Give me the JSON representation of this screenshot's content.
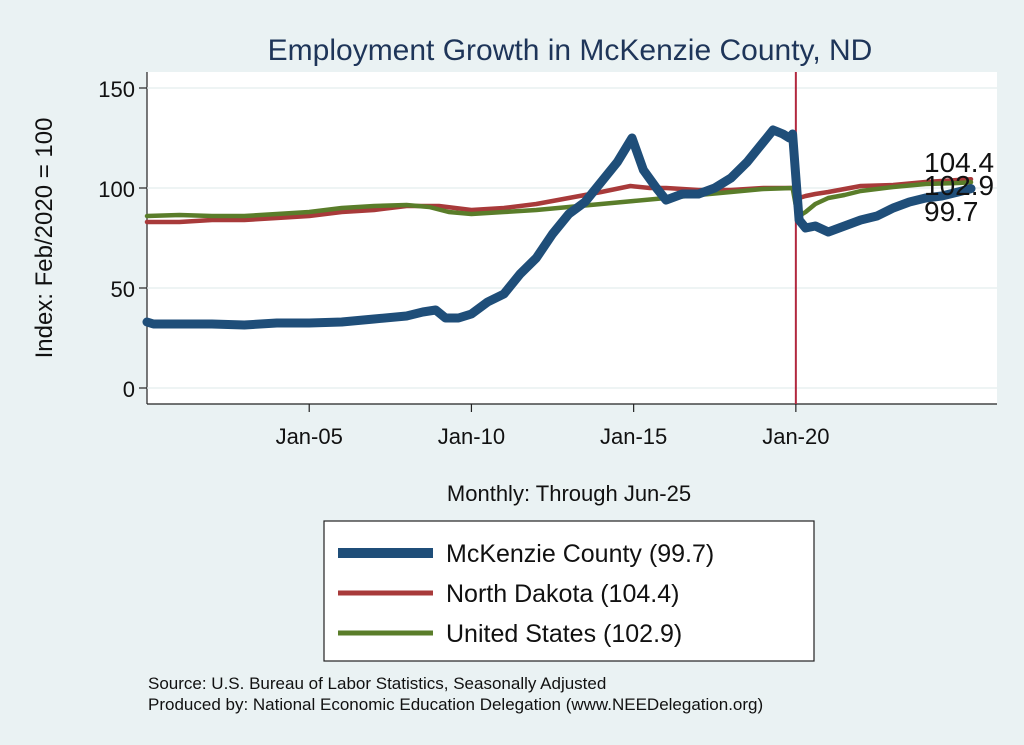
{
  "chart_data": {
    "type": "line",
    "title": "Employment Growth in McKenzie  County, ND",
    "ylabel": "Index: Feb/2020 = 100",
    "xlabel": "Monthly: Through Jun-25",
    "ylim": [
      -8,
      158
    ],
    "xlim": [
      2000.0,
      2026.2
    ],
    "yticks": [
      0,
      50,
      100,
      150
    ],
    "xticks": [
      {
        "value": 2005,
        "label": "Jan-05"
      },
      {
        "value": 2010,
        "label": "Jan-10"
      },
      {
        "value": 2015,
        "label": "Jan-15"
      },
      {
        "value": 2020,
        "label": "Jan-20"
      }
    ],
    "vline": {
      "x": 2020,
      "color": "#b2283f"
    },
    "series": [
      {
        "name": "McKenzie  County",
        "legend_label": "McKenzie  County (99.7)",
        "end_label": "99.7",
        "color": "#1f4e79",
        "x": [
          2000.0,
          2000.2,
          2001,
          2002,
          2003,
          2004,
          2005,
          2006,
          2007,
          2008,
          2008.5,
          2008.9,
          2009.2,
          2009.6,
          2010.0,
          2010.5,
          2011.0,
          2011.5,
          2012.0,
          2012.5,
          2013.0,
          2013.5,
          2014.0,
          2014.5,
          2014.95,
          2015.3,
          2015.7,
          2016.0,
          2016.5,
          2017.0,
          2017.5,
          2018.0,
          2018.5,
          2019.0,
          2019.3,
          2019.6,
          2019.8,
          2019.9,
          2020.0,
          2020.1,
          2020.3,
          2020.6,
          2021.0,
          2021.5,
          2022.0,
          2022.5,
          2023.0,
          2023.5,
          2024.0,
          2024.5,
          2025.0,
          2025.4
        ],
        "y": [
          33,
          32,
          32,
          32,
          31.5,
          32.5,
          32.5,
          33,
          34.5,
          36,
          38,
          39,
          35,
          35,
          37,
          43,
          47,
          57,
          65,
          77,
          87,
          93,
          103,
          113,
          125,
          109,
          100,
          94,
          97,
          97,
          100,
          105,
          113,
          123,
          129,
          127,
          125,
          127,
          105,
          84,
          80,
          81,
          78,
          81,
          84,
          86,
          90,
          93,
          95,
          96,
          98,
          99.7
        ]
      },
      {
        "name": "North Dakota",
        "legend_label": "North Dakota (104.4)",
        "end_label": "104.4",
        "color": "#a83a3a",
        "x": [
          2000.0,
          2001,
          2002,
          2003,
          2004,
          2005,
          2006,
          2007,
          2008,
          2009,
          2010,
          2011,
          2012,
          2013,
          2014,
          2014.9,
          2015.5,
          2016.0,
          2017.0,
          2018.0,
          2019.0,
          2019.9,
          2020.0,
          2020.1,
          2020.3,
          2020.6,
          2021.0,
          2021.5,
          2022.0,
          2023.0,
          2024.0,
          2025.0,
          2025.4
        ],
        "y": [
          83,
          83,
          84,
          84,
          85,
          86,
          88,
          89,
          91,
          91,
          89,
          90,
          92,
          95,
          98,
          101,
          100,
          100,
          99,
          99,
          100,
          100,
          97,
          95,
          96,
          97,
          98,
          99.5,
          101,
          101.5,
          103,
          104,
          104.4
        ]
      },
      {
        "name": "United States",
        "legend_label": "United States (102.9)",
        "end_label": "102.9",
        "color": "#5a7d2a",
        "x": [
          2000.0,
          2001,
          2002,
          2003,
          2004,
          2005,
          2006,
          2007,
          2008,
          2008.7,
          2009.3,
          2010.0,
          2011,
          2012,
          2013,
          2014,
          2015,
          2016,
          2017,
          2018,
          2019,
          2019.9,
          2020.0,
          2020.1,
          2020.3,
          2020.6,
          2021.0,
          2021.5,
          2022.0,
          2023.0,
          2024.0,
          2025.0,
          2025.4
        ],
        "y": [
          86,
          86.5,
          86,
          86,
          87,
          88,
          90,
          91,
          91.5,
          90.5,
          88,
          87,
          88,
          89,
          90.5,
          92,
          93.5,
          95,
          96.5,
          98,
          99.5,
          100,
          91,
          86,
          88,
          92,
          95,
          96.5,
          98.5,
          100.5,
          102,
          102.5,
          102.9
        ]
      }
    ]
  },
  "source_lines": [
    "Source: U.S. Bureau of Labor Statistics, Seasonally Adjusted",
    "Produced by: National Economic Education Delegation (www.NEEDelegation.org)"
  ]
}
